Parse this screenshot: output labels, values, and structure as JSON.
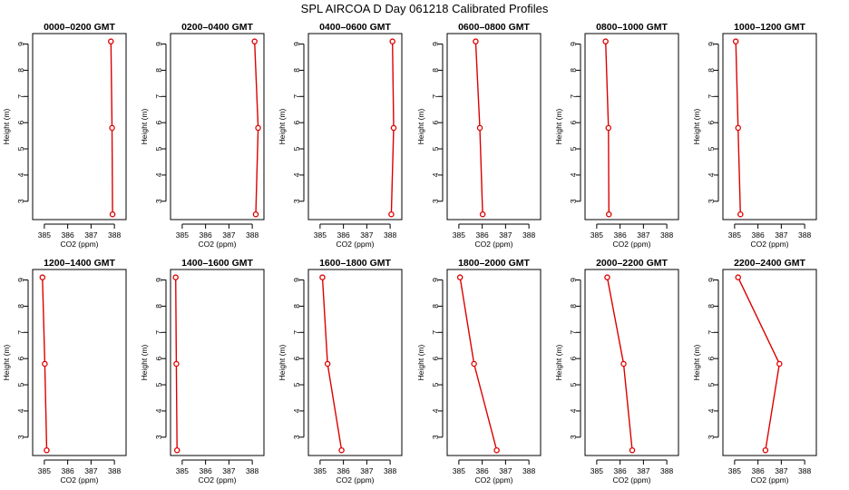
{
  "figure": {
    "title": "SPL AIRCOA D  Day 061218  Calibrated Profiles"
  },
  "colors": {
    "series": "#dd0000",
    "axis": "#000000"
  },
  "chart_data": [
    {
      "type": "line",
      "title": "0000–0200 GMT",
      "xlabel": "CO2 (ppm)",
      "ylabel": "Height (m)",
      "xlim": [
        384.5,
        388.5
      ],
      "ylim": [
        2.3,
        9.4
      ],
      "xticks": [
        385,
        386,
        387,
        388
      ],
      "yticks": [
        3,
        4,
        5,
        6,
        7,
        8,
        9
      ],
      "grid": false,
      "points": [
        {
          "x": 387.85,
          "y": 9.1
        },
        {
          "x": 387.9,
          "y": 5.8
        },
        {
          "x": 387.92,
          "y": 2.5
        }
      ]
    },
    {
      "type": "line",
      "title": "0200–0400 GMT",
      "xlabel": "CO2 (ppm)",
      "ylabel": "Height (m)",
      "xlim": [
        384.5,
        388.5
      ],
      "ylim": [
        2.3,
        9.4
      ],
      "xticks": [
        385,
        386,
        387,
        388
      ],
      "yticks": [
        3,
        4,
        5,
        6,
        7,
        8,
        9
      ],
      "grid": false,
      "points": [
        {
          "x": 388.1,
          "y": 9.1
        },
        {
          "x": 388.25,
          "y": 5.8
        },
        {
          "x": 388.15,
          "y": 2.5
        }
      ]
    },
    {
      "type": "line",
      "title": "0400–0600 GMT",
      "xlabel": "CO2 (ppm)",
      "ylabel": "Height (m)",
      "xlim": [
        384.5,
        388.5
      ],
      "ylim": [
        2.3,
        9.4
      ],
      "xticks": [
        385,
        386,
        387,
        388
      ],
      "yticks": [
        3,
        4,
        5,
        6,
        7,
        8,
        9
      ],
      "grid": false,
      "points": [
        {
          "x": 388.1,
          "y": 9.1
        },
        {
          "x": 388.15,
          "y": 5.8
        },
        {
          "x": 388.05,
          "y": 2.5
        }
      ]
    },
    {
      "type": "line",
      "title": "0600–0800 GMT",
      "xlabel": "CO2 (ppm)",
      "ylabel": "Height (m)",
      "xlim": [
        384.5,
        388.5
      ],
      "ylim": [
        2.3,
        9.4
      ],
      "xticks": [
        385,
        386,
        387,
        388
      ],
      "yticks": [
        3,
        4,
        5,
        6,
        7,
        8,
        9
      ],
      "grid": false,
      "points": [
        {
          "x": 385.72,
          "y": 9.1
        },
        {
          "x": 385.9,
          "y": 5.8
        },
        {
          "x": 386.02,
          "y": 2.5
        }
      ]
    },
    {
      "type": "line",
      "title": "0800–1000 GMT",
      "xlabel": "CO2 (ppm)",
      "ylabel": "Height (m)",
      "xlim": [
        384.5,
        388.5
      ],
      "ylim": [
        2.3,
        9.4
      ],
      "xticks": [
        385,
        386,
        387,
        388
      ],
      "yticks": [
        3,
        4,
        5,
        6,
        7,
        8,
        9
      ],
      "grid": false,
      "points": [
        {
          "x": 385.38,
          "y": 9.1
        },
        {
          "x": 385.5,
          "y": 5.8
        },
        {
          "x": 385.52,
          "y": 2.5
        }
      ]
    },
    {
      "type": "line",
      "title": "1000–1200 GMT",
      "xlabel": "CO2 (ppm)",
      "ylabel": "Height (m)",
      "xlim": [
        384.5,
        388.5
      ],
      "ylim": [
        2.3,
        9.4
      ],
      "xticks": [
        385,
        386,
        387,
        388
      ],
      "yticks": [
        3,
        4,
        5,
        6,
        7,
        8,
        9
      ],
      "grid": false,
      "points": [
        {
          "x": 385.05,
          "y": 9.1
        },
        {
          "x": 385.15,
          "y": 5.8
        },
        {
          "x": 385.25,
          "y": 2.5
        }
      ]
    },
    {
      "type": "line",
      "title": "1200–1400 GMT",
      "xlabel": "CO2 (ppm)",
      "ylabel": "Height (m)",
      "xlim": [
        384.5,
        388.5
      ],
      "ylim": [
        2.3,
        9.4
      ],
      "xticks": [
        385,
        386,
        387,
        388
      ],
      "yticks": [
        3,
        4,
        5,
        6,
        7,
        8,
        9
      ],
      "grid": false,
      "points": [
        {
          "x": 384.92,
          "y": 9.1
        },
        {
          "x": 385.02,
          "y": 5.8
        },
        {
          "x": 385.1,
          "y": 2.5
        }
      ]
    },
    {
      "type": "line",
      "title": "1400–1600 GMT",
      "xlabel": "CO2 (ppm)",
      "ylabel": "Height (m)",
      "xlim": [
        384.5,
        388.5
      ],
      "ylim": [
        2.3,
        9.4
      ],
      "xticks": [
        385,
        386,
        387,
        388
      ],
      "yticks": [
        3,
        4,
        5,
        6,
        7,
        8,
        9
      ],
      "grid": false,
      "points": [
        {
          "x": 384.72,
          "y": 9.1
        },
        {
          "x": 384.75,
          "y": 5.8
        },
        {
          "x": 384.78,
          "y": 2.5
        }
      ]
    },
    {
      "type": "line",
      "title": "1600–1800 GMT",
      "xlabel": "CO2 (ppm)",
      "ylabel": "Height (m)",
      "xlim": [
        384.5,
        388.5
      ],
      "ylim": [
        2.3,
        9.4
      ],
      "xticks": [
        385,
        386,
        387,
        388
      ],
      "yticks": [
        3,
        4,
        5,
        6,
        7,
        8,
        9
      ],
      "grid": false,
      "points": [
        {
          "x": 385.1,
          "y": 9.1
        },
        {
          "x": 385.32,
          "y": 5.8
        },
        {
          "x": 385.92,
          "y": 2.5
        }
      ]
    },
    {
      "type": "line",
      "title": "1800–2000 GMT",
      "xlabel": "CO2 (ppm)",
      "ylabel": "Height (m)",
      "xlim": [
        384.5,
        388.5
      ],
      "ylim": [
        2.3,
        9.4
      ],
      "xticks": [
        385,
        386,
        387,
        388
      ],
      "yticks": [
        3,
        4,
        5,
        6,
        7,
        8,
        9
      ],
      "grid": false,
      "points": [
        {
          "x": 385.05,
          "y": 9.1
        },
        {
          "x": 385.65,
          "y": 5.8
        },
        {
          "x": 386.62,
          "y": 2.5
        }
      ]
    },
    {
      "type": "line",
      "title": "2000–2200 GMT",
      "xlabel": "CO2 (ppm)",
      "ylabel": "Height (m)",
      "xlim": [
        384.5,
        388.5
      ],
      "ylim": [
        2.3,
        9.4
      ],
      "xticks": [
        385,
        386,
        387,
        388
      ],
      "yticks": [
        3,
        4,
        5,
        6,
        7,
        8,
        9
      ],
      "grid": false,
      "points": [
        {
          "x": 385.45,
          "y": 9.1
        },
        {
          "x": 386.15,
          "y": 5.8
        },
        {
          "x": 386.52,
          "y": 2.5
        }
      ]
    },
    {
      "type": "line",
      "title": "2200–2400 GMT",
      "xlabel": "CO2 (ppm)",
      "ylabel": "Height (m)",
      "xlim": [
        384.5,
        388.5
      ],
      "ylim": [
        2.3,
        9.4
      ],
      "xticks": [
        385,
        386,
        387,
        388
      ],
      "yticks": [
        3,
        4,
        5,
        6,
        7,
        8,
        9
      ],
      "grid": false,
      "points": [
        {
          "x": 385.15,
          "y": 9.1
        },
        {
          "x": 386.92,
          "y": 5.8
        },
        {
          "x": 386.32,
          "y": 2.5
        }
      ]
    }
  ]
}
